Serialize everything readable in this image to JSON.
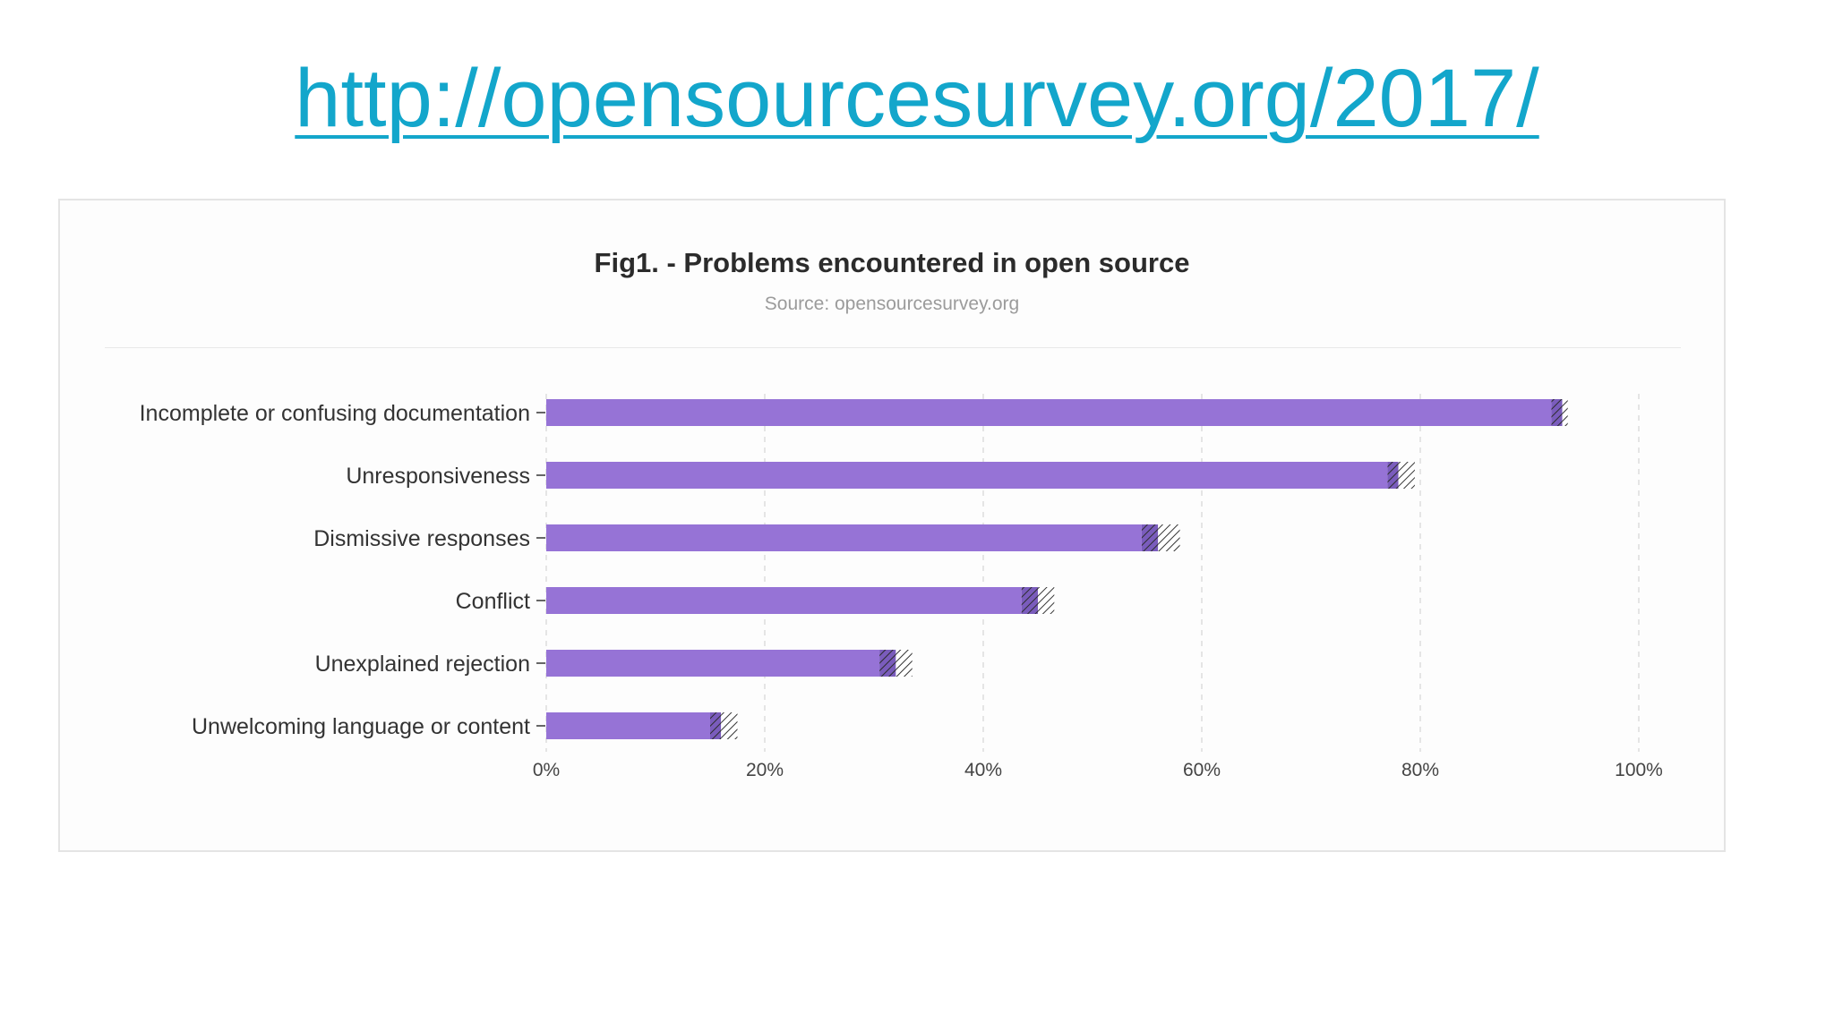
{
  "header": {
    "link_text": "http://opensourcesurvey.org/2017/"
  },
  "figure": {
    "title": "Fig1. - Problems encountered in open source",
    "source": "Source: opensourcesurvey.org"
  },
  "colors": {
    "link": "#13a6cb",
    "bar": "#9673d6",
    "grid": "#dddddd",
    "hatch": "#333333"
  },
  "chart_data": {
    "type": "bar",
    "orientation": "horizontal",
    "categories": [
      "Incomplete or confusing documentation",
      "Unresponsiveness",
      "Dismissive responses",
      "Conflict",
      "Unexplained rejection",
      "Unwelcoming language or content"
    ],
    "values": [
      93,
      78,
      56,
      45,
      32,
      16
    ],
    "uncertainty": [
      [
        92,
        93.5
      ],
      [
        77,
        79.5
      ],
      [
        54.5,
        58
      ],
      [
        43.5,
        46.5
      ],
      [
        30.5,
        33.5
      ],
      [
        15,
        17.5
      ]
    ],
    "title": "Fig1. - Problems encountered in open source",
    "subtitle": "Source: opensourcesurvey.org",
    "xlabel": "",
    "ylabel": "",
    "xlim": [
      0,
      100
    ],
    "xticks": [
      0,
      20,
      40,
      60,
      80,
      100
    ],
    "xtick_labels": [
      "0%",
      "20%",
      "40%",
      "60%",
      "80%",
      "100%"
    ],
    "grid": "vertical dashed",
    "legend": "none"
  }
}
